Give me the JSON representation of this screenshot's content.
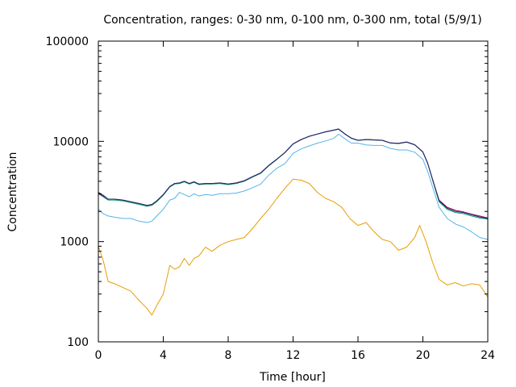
{
  "chart_data": {
    "type": "line",
    "title": "Concentration, ranges: 0-30 nm, 0-100 nm, 0-300 nm, total (5/9/1)",
    "xlabel": "Time [hour]",
    "ylabel": "Concentration",
    "xlim": [
      0,
      24
    ],
    "ylim": [
      100,
      100000
    ],
    "yscale": "log",
    "grid": false,
    "legend": "none",
    "x_ticks": [
      0,
      4,
      8,
      12,
      16,
      20,
      24
    ],
    "x_tick_labels": [
      "0",
      "4",
      "8",
      "12",
      "16",
      "20",
      "24"
    ],
    "y_ticks": [
      100,
      1000,
      10000,
      100000
    ],
    "y_tick_labels": [
      "100",
      "1000",
      "10000",
      "100000"
    ],
    "series": [
      {
        "color": "#e69f00",
        "x": [
          0,
          0.3,
          0.6,
          1.0,
          1.5,
          2.0,
          2.5,
          3.0,
          3.3,
          3.6,
          4.0,
          4.4,
          4.7,
          5.0,
          5.3,
          5.6,
          5.9,
          6.2,
          6.6,
          7.0,
          7.5,
          8.0,
          8.5,
          9.0,
          9.5,
          10.0,
          10.5,
          11.0,
          11.5,
          12.0,
          12.5,
          13.0,
          13.5,
          14.0,
          14.5,
          15.0,
          15.5,
          16.0,
          16.5,
          17.0,
          17.5,
          18.0,
          18.5,
          19.0,
          19.5,
          19.8,
          20.2,
          20.6,
          21.0,
          21.5,
          22.0,
          22.5,
          23.0,
          23.5,
          24.0
        ],
        "values": [
          900,
          650,
          400,
          380,
          350,
          320,
          260,
          215,
          185,
          230,
          300,
          580,
          530,
          560,
          680,
          580,
          680,
          720,
          880,
          800,
          920,
          1000,
          1050,
          1100,
          1350,
          1700,
          2100,
          2700,
          3400,
          4200,
          4100,
          3800,
          3100,
          2700,
          2500,
          2200,
          1700,
          1450,
          1550,
          1250,
          1050,
          1000,
          820,
          880,
          1100,
          1450,
          1000,
          620,
          420,
          370,
          390,
          360,
          380,
          370,
          280
        ]
      },
      {
        "color": "#56b4e9",
        "x": [
          0,
          0.3,
          0.6,
          1.0,
          1.5,
          2.0,
          2.5,
          3.0,
          3.3,
          3.6,
          4.0,
          4.4,
          4.7,
          5.0,
          5.3,
          5.6,
          5.9,
          6.2,
          6.6,
          7.0,
          7.5,
          8.0,
          8.5,
          9.0,
          9.5,
          10.0,
          10.5,
          11.0,
          11.5,
          12.0,
          12.5,
          13.0,
          13.5,
          14.0,
          14.5,
          14.8,
          15.2,
          15.6,
          16.0,
          16.5,
          17.0,
          17.5,
          18.0,
          18.5,
          19.0,
          19.5,
          20.0,
          20.3,
          20.6,
          21.0,
          21.5,
          22.0,
          22.5,
          23.0,
          23.5,
          24.0
        ],
        "values": [
          2100,
          1900,
          1800,
          1750,
          1700,
          1700,
          1600,
          1550,
          1600,
          1800,
          2100,
          2600,
          2700,
          3100,
          2950,
          2800,
          3000,
          2850,
          2950,
          2900,
          3000,
          3000,
          3050,
          3200,
          3450,
          3750,
          4600,
          5400,
          6000,
          7600,
          8400,
          9000,
          9600,
          10100,
          10700,
          11800,
          10600,
          9600,
          9600,
          9200,
          9100,
          9100,
          8500,
          8200,
          8200,
          7800,
          6600,
          5000,
          3500,
          2200,
          1700,
          1500,
          1400,
          1250,
          1100,
          1050
        ]
      },
      {
        "color": "#009e73",
        "x": [
          0,
          0.3,
          0.6,
          1.0,
          1.5,
          2.0,
          2.5,
          3.0,
          3.3,
          3.6,
          4.0,
          4.4,
          4.7,
          5.0,
          5.3,
          5.6,
          5.9,
          6.2,
          6.6,
          7.0,
          7.5,
          8.0,
          8.5,
          9.0,
          9.5,
          10.0,
          10.5,
          11.0,
          11.5,
          12.0,
          12.5,
          13.0,
          13.5,
          14.0,
          14.5,
          14.8,
          15.2,
          15.6,
          16.0,
          16.5,
          17.0,
          17.5,
          18.0,
          18.5,
          19.0,
          19.5,
          20.0,
          20.3,
          20.6,
          21.0,
          21.5,
          22.0,
          22.5,
          23.0,
          23.5,
          24.0
        ],
        "values": [
          3000,
          2800,
          2600,
          2600,
          2550,
          2450,
          2350,
          2250,
          2300,
          2500,
          2900,
          3500,
          3750,
          3800,
          3950,
          3750,
          3900,
          3700,
          3750,
          3750,
          3800,
          3700,
          3800,
          4000,
          4400,
          4800,
          5700,
          6600,
          7700,
          9400,
          10400,
          11200,
          11800,
          12400,
          12900,
          13200,
          11800,
          10700,
          10200,
          10400,
          10300,
          10200,
          9600,
          9500,
          9800,
          9200,
          7800,
          6000,
          4100,
          2500,
          2100,
          1950,
          1900,
          1800,
          1720,
          1680
        ]
      },
      {
        "color": "#b00060",
        "x": [
          0,
          0.3,
          0.6,
          1.0,
          1.5,
          2.0,
          2.5,
          3.0,
          3.3,
          3.6,
          4.0,
          4.4,
          4.7,
          5.0,
          5.3,
          5.6,
          5.9,
          6.2,
          6.6,
          7.0,
          7.5,
          8.0,
          8.5,
          9.0,
          9.5,
          10.0,
          10.5,
          11.0,
          11.5,
          12.0,
          12.5,
          13.0,
          13.5,
          14.0,
          14.5,
          14.8,
          15.2,
          15.6,
          16.0,
          16.5,
          17.0,
          17.5,
          18.0,
          18.5,
          19.0,
          19.5,
          20.0,
          20.3,
          20.6,
          21.0,
          21.5,
          22.0,
          22.5,
          23.0,
          23.5,
          24.0
        ],
        "values": [
          3050,
          2850,
          2650,
          2650,
          2600,
          2500,
          2400,
          2300,
          2350,
          2550,
          2950,
          3550,
          3800,
          3850,
          4000,
          3800,
          3950,
          3750,
          3800,
          3800,
          3850,
          3750,
          3850,
          4050,
          4450,
          4850,
          5750,
          6650,
          7750,
          9450,
          10450,
          11250,
          11850,
          12450,
          12950,
          13250,
          11850,
          10750,
          10250,
          10450,
          10350,
          10250,
          9650,
          9550,
          9850,
          9250,
          7850,
          6050,
          4150,
          2600,
          2200,
          2050,
          1980,
          1880,
          1800,
          1720
        ]
      },
      {
        "color": "#1a2a6c",
        "x": [
          0,
          0.3,
          0.6,
          1.0,
          1.5,
          2.0,
          2.5,
          3.0,
          3.3,
          3.6,
          4.0,
          4.4,
          4.7,
          5.0,
          5.3,
          5.6,
          5.9,
          6.2,
          6.6,
          7.0,
          7.5,
          8.0,
          8.5,
          9.0,
          9.5,
          10.0,
          10.5,
          11.0,
          11.5,
          12.0,
          12.5,
          13.0,
          13.5,
          14.0,
          14.5,
          14.8,
          15.2,
          15.6,
          16.0,
          16.5,
          17.0,
          17.5,
          18.0,
          18.5,
          19.0,
          19.5,
          20.0,
          20.3,
          20.6,
          21.0,
          21.5,
          22.0,
          22.5,
          23.0,
          23.5,
          24.0
        ],
        "values": [
          3100,
          2900,
          2650,
          2650,
          2600,
          2500,
          2400,
          2300,
          2350,
          2550,
          2950,
          3550,
          3800,
          3850,
          4000,
          3800,
          3950,
          3750,
          3800,
          3800,
          3850,
          3750,
          3850,
          4050,
          4450,
          4850,
          5750,
          6650,
          7750,
          9450,
          10450,
          11250,
          11850,
          12450,
          12950,
          13300,
          11850,
          10750,
          10250,
          10450,
          10350,
          10250,
          9650,
          9550,
          9850,
          9250,
          7850,
          6050,
          4150,
          2550,
          2150,
          2000,
          1950,
          1850,
          1760,
          1700
        ]
      }
    ]
  }
}
